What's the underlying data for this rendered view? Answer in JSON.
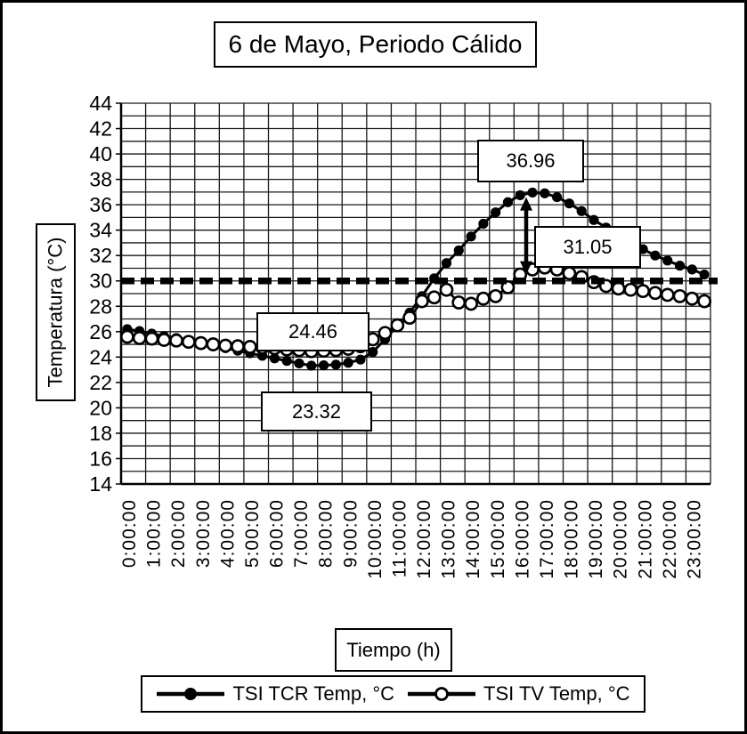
{
  "colors": {
    "ink": "#000000",
    "background": "#ffffff",
    "grid": "#1a1a1a"
  },
  "chart_data": {
    "type": "line",
    "title": "6 de Mayo, Periodo Cálido",
    "xlabel": "Tiempo (h)",
    "ylabel": "Temperatura (°C)",
    "ylim": [
      14,
      44
    ],
    "y_ticks": [
      14,
      16,
      18,
      20,
      22,
      24,
      26,
      28,
      30,
      32,
      34,
      36,
      38,
      40,
      42,
      44
    ],
    "y_minor_step": 1,
    "grid": "on",
    "legend_position": "bottom",
    "x_tick_labels": [
      "0:00:00",
      "1:00:00",
      "2:00:00",
      "3:00:00",
      "4:00:00",
      "5:00:00",
      "6:00:00",
      "7:00:00",
      "8:00:00",
      "9:00:00",
      "10:00:00",
      "11:00:00",
      "12:00:00",
      "13:00:00",
      "14:00:00",
      "15:00:00",
      "16:00:00",
      "17:00:00",
      "18:00:00",
      "19:00:00",
      "20:00:00",
      "21:00:00",
      "22:00:00",
      "23:00:00"
    ],
    "x": [
      "0:00:00",
      "0:30:00",
      "1:00:00",
      "1:30:00",
      "2:00:00",
      "2:30:00",
      "3:00:00",
      "3:30:00",
      "4:00:00",
      "4:30:00",
      "5:00:00",
      "5:30:00",
      "6:00:00",
      "6:30:00",
      "7:00:00",
      "7:30:00",
      "8:00:00",
      "8:30:00",
      "9:00:00",
      "9:30:00",
      "10:00:00",
      "10:30:00",
      "11:00:00",
      "11:30:00",
      "12:00:00",
      "12:30:00",
      "13:00:00",
      "13:30:00",
      "14:00:00",
      "14:30:00",
      "15:00:00",
      "15:30:00",
      "16:00:00",
      "16:30:00",
      "17:00:00",
      "17:30:00",
      "18:00:00",
      "18:30:00",
      "19:00:00",
      "19:30:00",
      "20:00:00",
      "20:30:00",
      "21:00:00",
      "21:30:00",
      "22:00:00",
      "22:30:00",
      "23:00:00",
      "23:30:00"
    ],
    "series": [
      {
        "name": "TSI TCR Temp, °C",
        "marker": "filled-circle",
        "values": [
          26.2,
          26.05,
          25.85,
          25.65,
          25.5,
          25.3,
          25.1,
          24.9,
          24.7,
          24.5,
          24.3,
          24.1,
          23.9,
          23.7,
          23.5,
          23.32,
          23.35,
          23.4,
          23.55,
          23.8,
          24.4,
          25.4,
          26.5,
          27.5,
          28.8,
          30.2,
          31.4,
          32.4,
          33.5,
          34.5,
          35.4,
          36.2,
          36.75,
          36.96,
          36.9,
          36.6,
          36.1,
          35.5,
          34.8,
          34.2,
          33.6,
          33.0,
          32.5,
          32.0,
          31.6,
          31.2,
          30.9,
          30.5
        ]
      },
      {
        "name": "TSI TV Temp, °C",
        "marker": "open-circle",
        "values": [
          25.6,
          25.5,
          25.45,
          25.35,
          25.3,
          25.2,
          25.1,
          25.0,
          24.9,
          24.85,
          24.8,
          24.75,
          24.7,
          24.6,
          24.55,
          24.46,
          24.5,
          24.55,
          24.65,
          24.85,
          25.4,
          25.9,
          26.5,
          27.1,
          28.4,
          28.7,
          29.3,
          28.3,
          28.2,
          28.6,
          28.8,
          29.5,
          30.5,
          30.9,
          31.05,
          30.9,
          30.6,
          30.3,
          29.9,
          29.6,
          29.4,
          29.3,
          29.2,
          29.05,
          28.9,
          28.8,
          28.6,
          28.4
        ]
      }
    ],
    "reference_line": {
      "y": 30,
      "style": "thick-dashed"
    },
    "difference_arrow": {
      "at_x": "16:15:00",
      "y_from": 30.5,
      "y_to": 36.6
    },
    "annotations": [
      {
        "label": "36.96"
      },
      {
        "label": "31.05"
      },
      {
        "label": "24.46"
      },
      {
        "label": "23.32"
      }
    ]
  }
}
